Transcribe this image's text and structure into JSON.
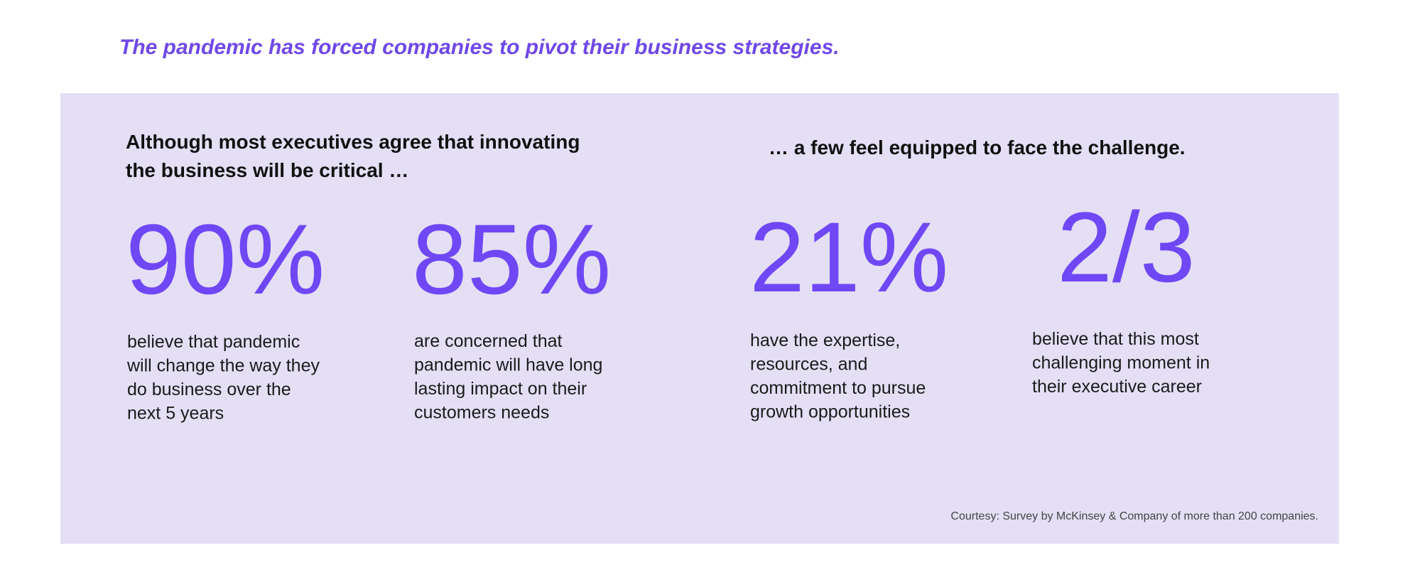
{
  "header": {
    "title": "The pandemic has forced companies to pivot their business strategies."
  },
  "panel": {
    "left_heading": [
      "Although most executives agree that innovating",
      "the business will be critical …"
    ],
    "right_heading": "… a few feel equipped to face the challenge.",
    "stats": [
      {
        "value": "90%",
        "description": [
          "believe that pandemic",
          "will change the way they",
          "do business over the",
          "next 5 years"
        ]
      },
      {
        "value": "85%",
        "description": [
          "are concerned that",
          "pandemic will have long",
          "lasting impact on their",
          "customers needs"
        ]
      },
      {
        "value": "21%",
        "description": [
          "have the expertise,",
          "resources, and",
          "commitment to pursue",
          "growth opportunities"
        ]
      },
      {
        "value": "2/3",
        "description": [
          "believe that this most",
          "challenging moment in",
          "their executive career"
        ]
      }
    ],
    "footnote": "Courtesy: Survey by McKinsey & Company of more than 200 companies."
  }
}
